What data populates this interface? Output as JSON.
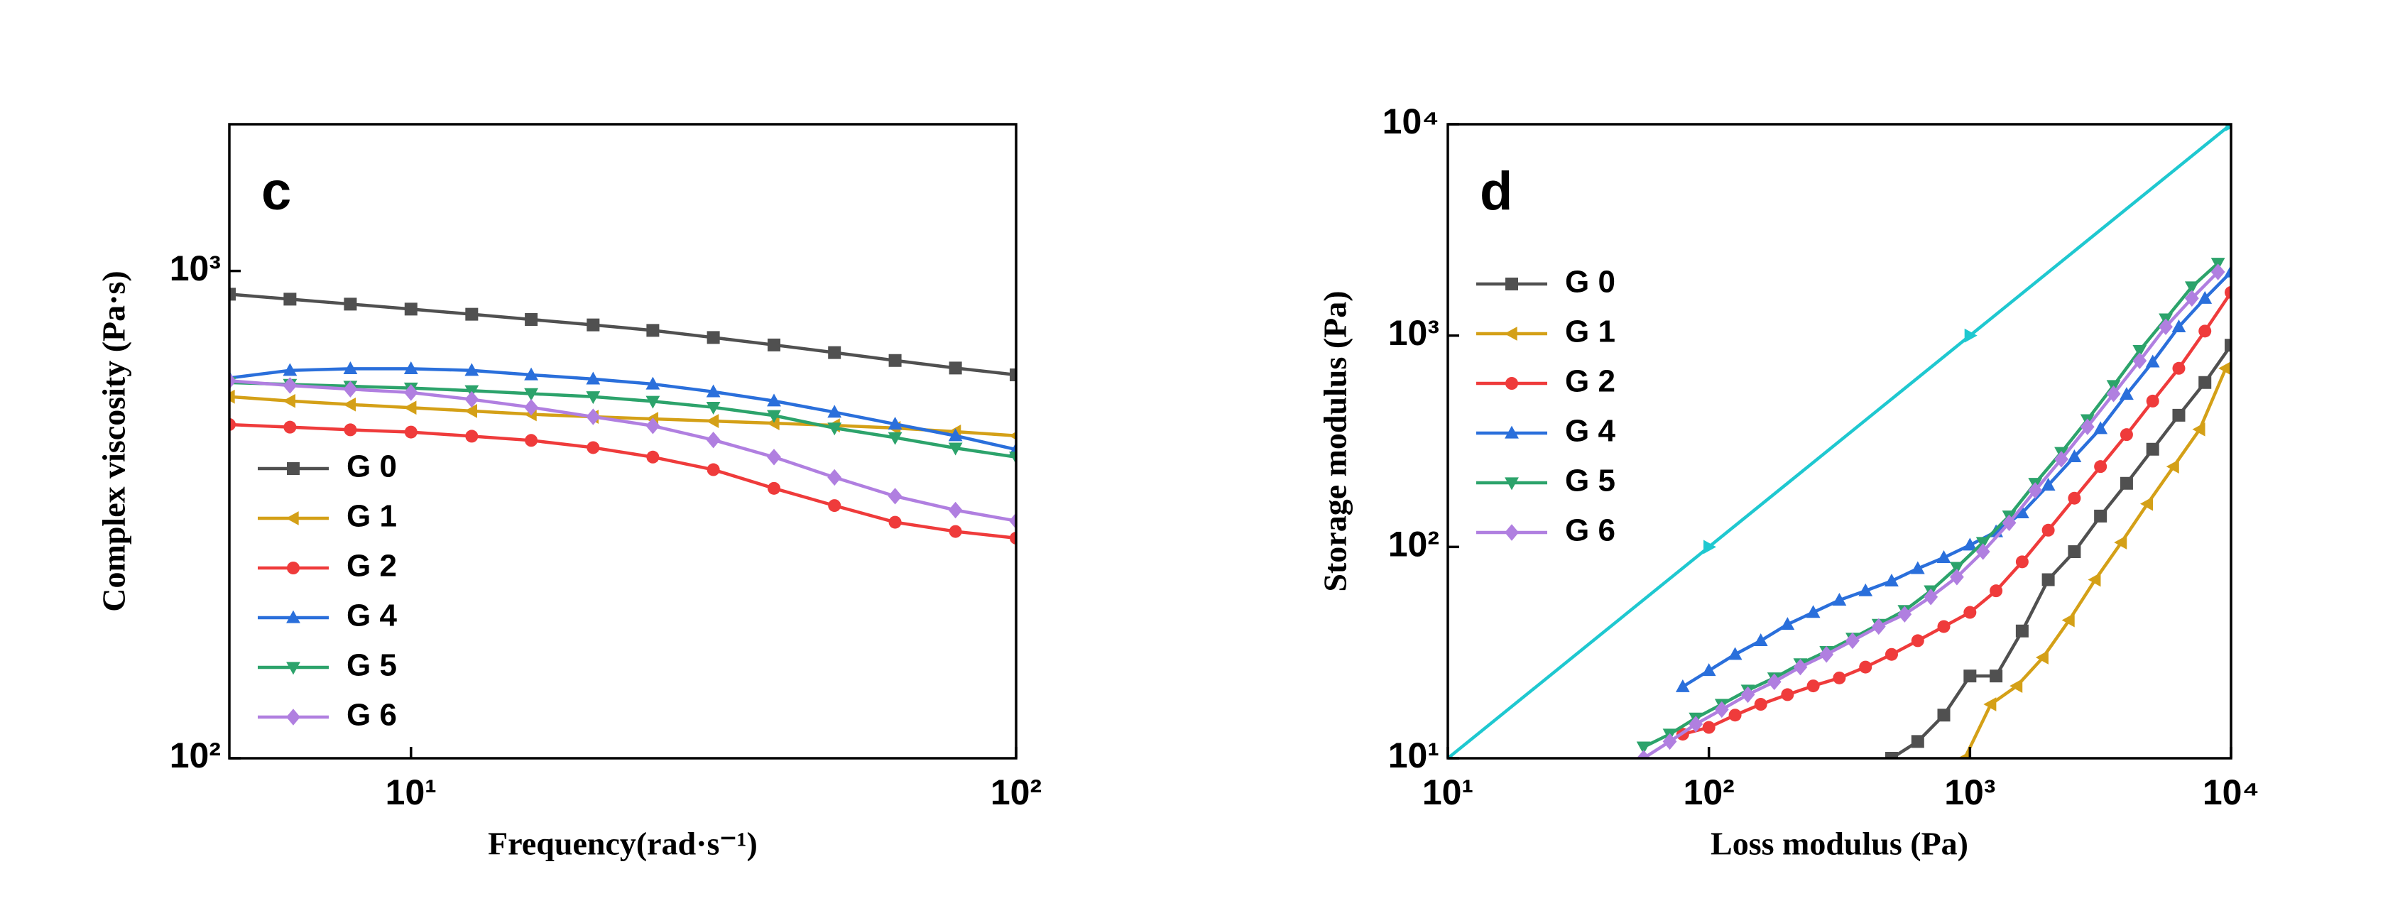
{
  "chart_data": [
    {
      "type": "line",
      "panel_label": "c",
      "x_label": "Frequency(rad·s⁻¹)",
      "y_label": "Complex viscosity (Pa·s)",
      "log_x": true,
      "log_y": true,
      "legend": "center left",
      "xlim": [
        5.01,
        100
      ],
      "ylim": [
        100,
        2000
      ],
      "xticks": [
        {
          "value": 10,
          "label": "10¹"
        },
        {
          "value": 100,
          "label": "10²"
        }
      ],
      "yticks": [
        {
          "value": 100,
          "label": "10²"
        },
        {
          "value": 1000,
          "label": "10³"
        }
      ],
      "x": [
        5.01,
        6.31,
        7.94,
        10,
        12.6,
        15.8,
        20,
        25.1,
        31.6,
        39.8,
        50.1,
        63.1,
        79.4,
        100
      ],
      "series": [
        {
          "name": "G 0",
          "color": "#505050",
          "marker": "square",
          "values": [
            896,
            875,
            855,
            835,
            815,
            795,
            775,
            755,
            730,
            705,
            680,
            655,
            632,
            612
          ]
        },
        {
          "name": "G 1",
          "color": "#d4a017",
          "marker": "triangle-left",
          "values": [
            552,
            541,
            532,
            524,
            516,
            508,
            502,
            497,
            492,
            487,
            482,
            476,
            468,
            459
          ]
        },
        {
          "name": "G 2",
          "color": "#ef3b3b",
          "marker": "circle",
          "values": [
            484,
            478,
            472,
            467,
            458,
            449,
            434,
            415,
            391,
            358,
            330,
            305,
            292,
            283
          ]
        },
        {
          "name": "G 4",
          "color": "#2a6fdb",
          "marker": "triangle-up",
          "values": [
            603,
            625,
            630,
            630,
            625,
            612,
            600,
            586,
            565,
            541,
            513,
            485,
            459,
            430
          ]
        },
        {
          "name": "G 5",
          "color": "#2ca36b",
          "marker": "triangle-down",
          "values": [
            590,
            585,
            580,
            575,
            568,
            560,
            552,
            540,
            525,
            505,
            476,
            455,
            433,
            415
          ]
        },
        {
          "name": "G 6",
          "color": "#b07fe0",
          "marker": "diamond",
          "values": [
            595,
            582,
            572,
            563,
            545,
            525,
            502,
            481,
            450,
            415,
            377,
            345,
            323,
            307
          ]
        }
      ]
    },
    {
      "type": "line",
      "panel_label": "d",
      "x_label": "Loss modulus (Pa)",
      "y_label": "Storage modulus (Pa)",
      "log_x": true,
      "log_y": true,
      "legend": "upper left",
      "xlim": [
        10,
        10000
      ],
      "ylim": [
        10,
        10000
      ],
      "xticks": [
        {
          "value": 10,
          "label": "10¹"
        },
        {
          "value": 100,
          "label": "10²"
        },
        {
          "value": 1000,
          "label": "10³"
        },
        {
          "value": 10000,
          "label": "10⁴"
        }
      ],
      "yticks": [
        {
          "value": 10,
          "label": "10¹"
        },
        {
          "value": 100,
          "label": "10²"
        },
        {
          "value": 1000,
          "label": "10³"
        },
        {
          "value": 10000,
          "label": "10⁴"
        }
      ],
      "series": [
        {
          "name": "G 0",
          "color": "#505050",
          "marker": "square",
          "x": [
            501,
            631,
            794,
            1000,
            1259,
            1585,
            1995,
            2512,
            3162,
            3981,
            5012,
            6310,
            7943,
            10000
          ],
          "values": [
            10,
            12,
            16,
            24.5,
            24.5,
            40,
            70,
            95,
            140,
            200,
            290,
            420,
            600,
            900
          ]
        },
        {
          "name": "G 1",
          "color": "#d4a017",
          "marker": "triangle-left",
          "x": [
            955,
            1202,
            1514,
            1905,
            2399,
            3020,
            3802,
            4786,
            6026,
            7586,
            9550
          ],
          "values": [
            10,
            18,
            22,
            30,
            45,
            70,
            105,
            160,
            240,
            360,
            700
          ]
        },
        {
          "name": "G 2",
          "color": "#ef3b3b",
          "marker": "circle",
          "x": [
            79.4,
            100,
            126,
            158,
            200,
            251,
            316,
            398,
            501,
            631,
            794,
            1000,
            1259,
            1585,
            1995,
            2512,
            3162,
            3981,
            5012,
            6310,
            7943,
            10000
          ],
          "values": [
            13,
            14,
            16,
            18,
            20,
            22,
            24,
            27,
            31,
            36,
            42,
            49,
            62,
            85,
            120,
            170,
            240,
            340,
            490,
            700,
            1050,
            1600
          ]
        },
        {
          "name": "G 4",
          "color": "#2a6fdb",
          "marker": "triangle-up",
          "x": [
            79.4,
            100,
            126,
            158,
            200,
            251,
            316,
            398,
            501,
            631,
            794,
            1000,
            1259,
            1585,
            1995,
            2512,
            3162,
            3981,
            5012,
            6310,
            7943,
            10000
          ],
          "values": [
            21.8,
            26,
            31,
            36,
            43,
            49,
            56,
            62,
            69,
            79,
            89,
            102,
            118,
            145,
            196,
            267,
            363,
            527,
            750,
            1100,
            1500,
            2000
          ]
        },
        {
          "name": "G 5",
          "color": "#2ca36b",
          "marker": "triangle-down",
          "x": [
            56.2,
            70.8,
            89.1,
            112,
            141,
            178,
            224,
            282,
            355,
            447,
            562,
            708,
            891,
            1122,
            1413,
            1778,
            2239,
            2818,
            3548,
            4467,
            5623,
            7079,
            8913
          ],
          "values": [
            11.3,
            13,
            15.5,
            18,
            21,
            24,
            28,
            32,
            37,
            43,
            50,
            62,
            80,
            105,
            140,
            200,
            280,
            400,
            580,
            850,
            1200,
            1700,
            2200
          ]
        },
        {
          "name": "G 6",
          "color": "#b07fe0",
          "marker": "diamond",
          "x": [
            56.2,
            70.8,
            89.1,
            112,
            141,
            178,
            224,
            282,
            355,
            447,
            562,
            708,
            891,
            1122,
            1413,
            1778,
            2239,
            2818,
            3548,
            4467,
            5623,
            7079,
            8913
          ],
          "values": [
            10,
            12,
            14.5,
            17,
            20,
            23,
            27,
            31,
            36,
            42,
            48,
            58,
            72,
            95,
            130,
            185,
            260,
            370,
            530,
            760,
            1100,
            1500,
            2000
          ]
        },
        {
          "color": "#1fc8d0",
          "marker": "triangle-right",
          "x": [
            10,
            100,
            1000,
            10000
          ],
          "values": [
            10,
            100,
            1000,
            10000
          ]
        }
      ]
    }
  ]
}
